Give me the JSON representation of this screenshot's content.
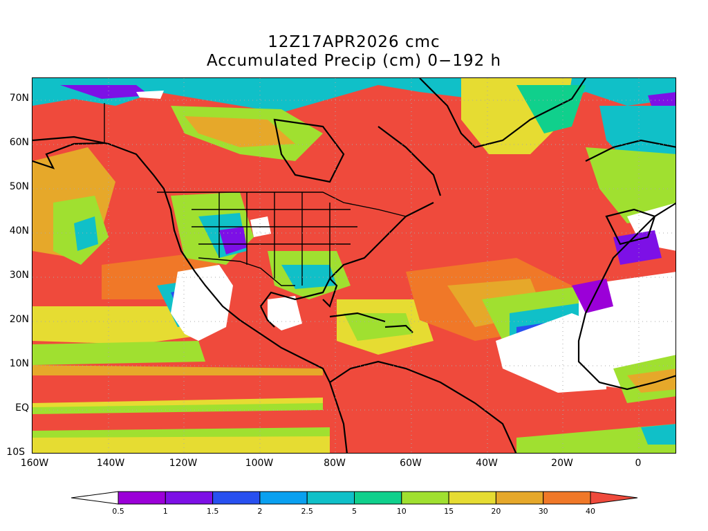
{
  "title": {
    "line1": "12Z17APR2026 cmc",
    "line2": "Accumulated Precip (cm) 0−192 h"
  },
  "map": {
    "projection": "lat-lon",
    "lon_range": [
      -160,
      10
    ],
    "lat_range": [
      -10,
      75
    ],
    "lat_labels": [
      "70N",
      "60N",
      "50N",
      "40N",
      "30N",
      "20N",
      "10N",
      "EQ",
      "10S"
    ],
    "lon_labels": [
      "160W",
      "140W",
      "120W",
      "100W",
      "80W",
      "60W",
      "40W",
      "20W",
      "0"
    ],
    "field": "Accumulated precipitation",
    "units": "cm"
  },
  "colorbar": {
    "levels": [
      "0.5",
      "1",
      "1.5",
      "2",
      "2.5",
      "5",
      "10",
      "15",
      "20",
      "30",
      "40"
    ],
    "colors": [
      "#ffffff",
      "#9b00d8",
      "#7d10e6",
      "#2850f0",
      "#0aa0f0",
      "#10c0c8",
      "#10d08c",
      "#a0e030",
      "#e6dc32",
      "#e6a82a",
      "#f07828",
      "#ef4a3c"
    ]
  }
}
